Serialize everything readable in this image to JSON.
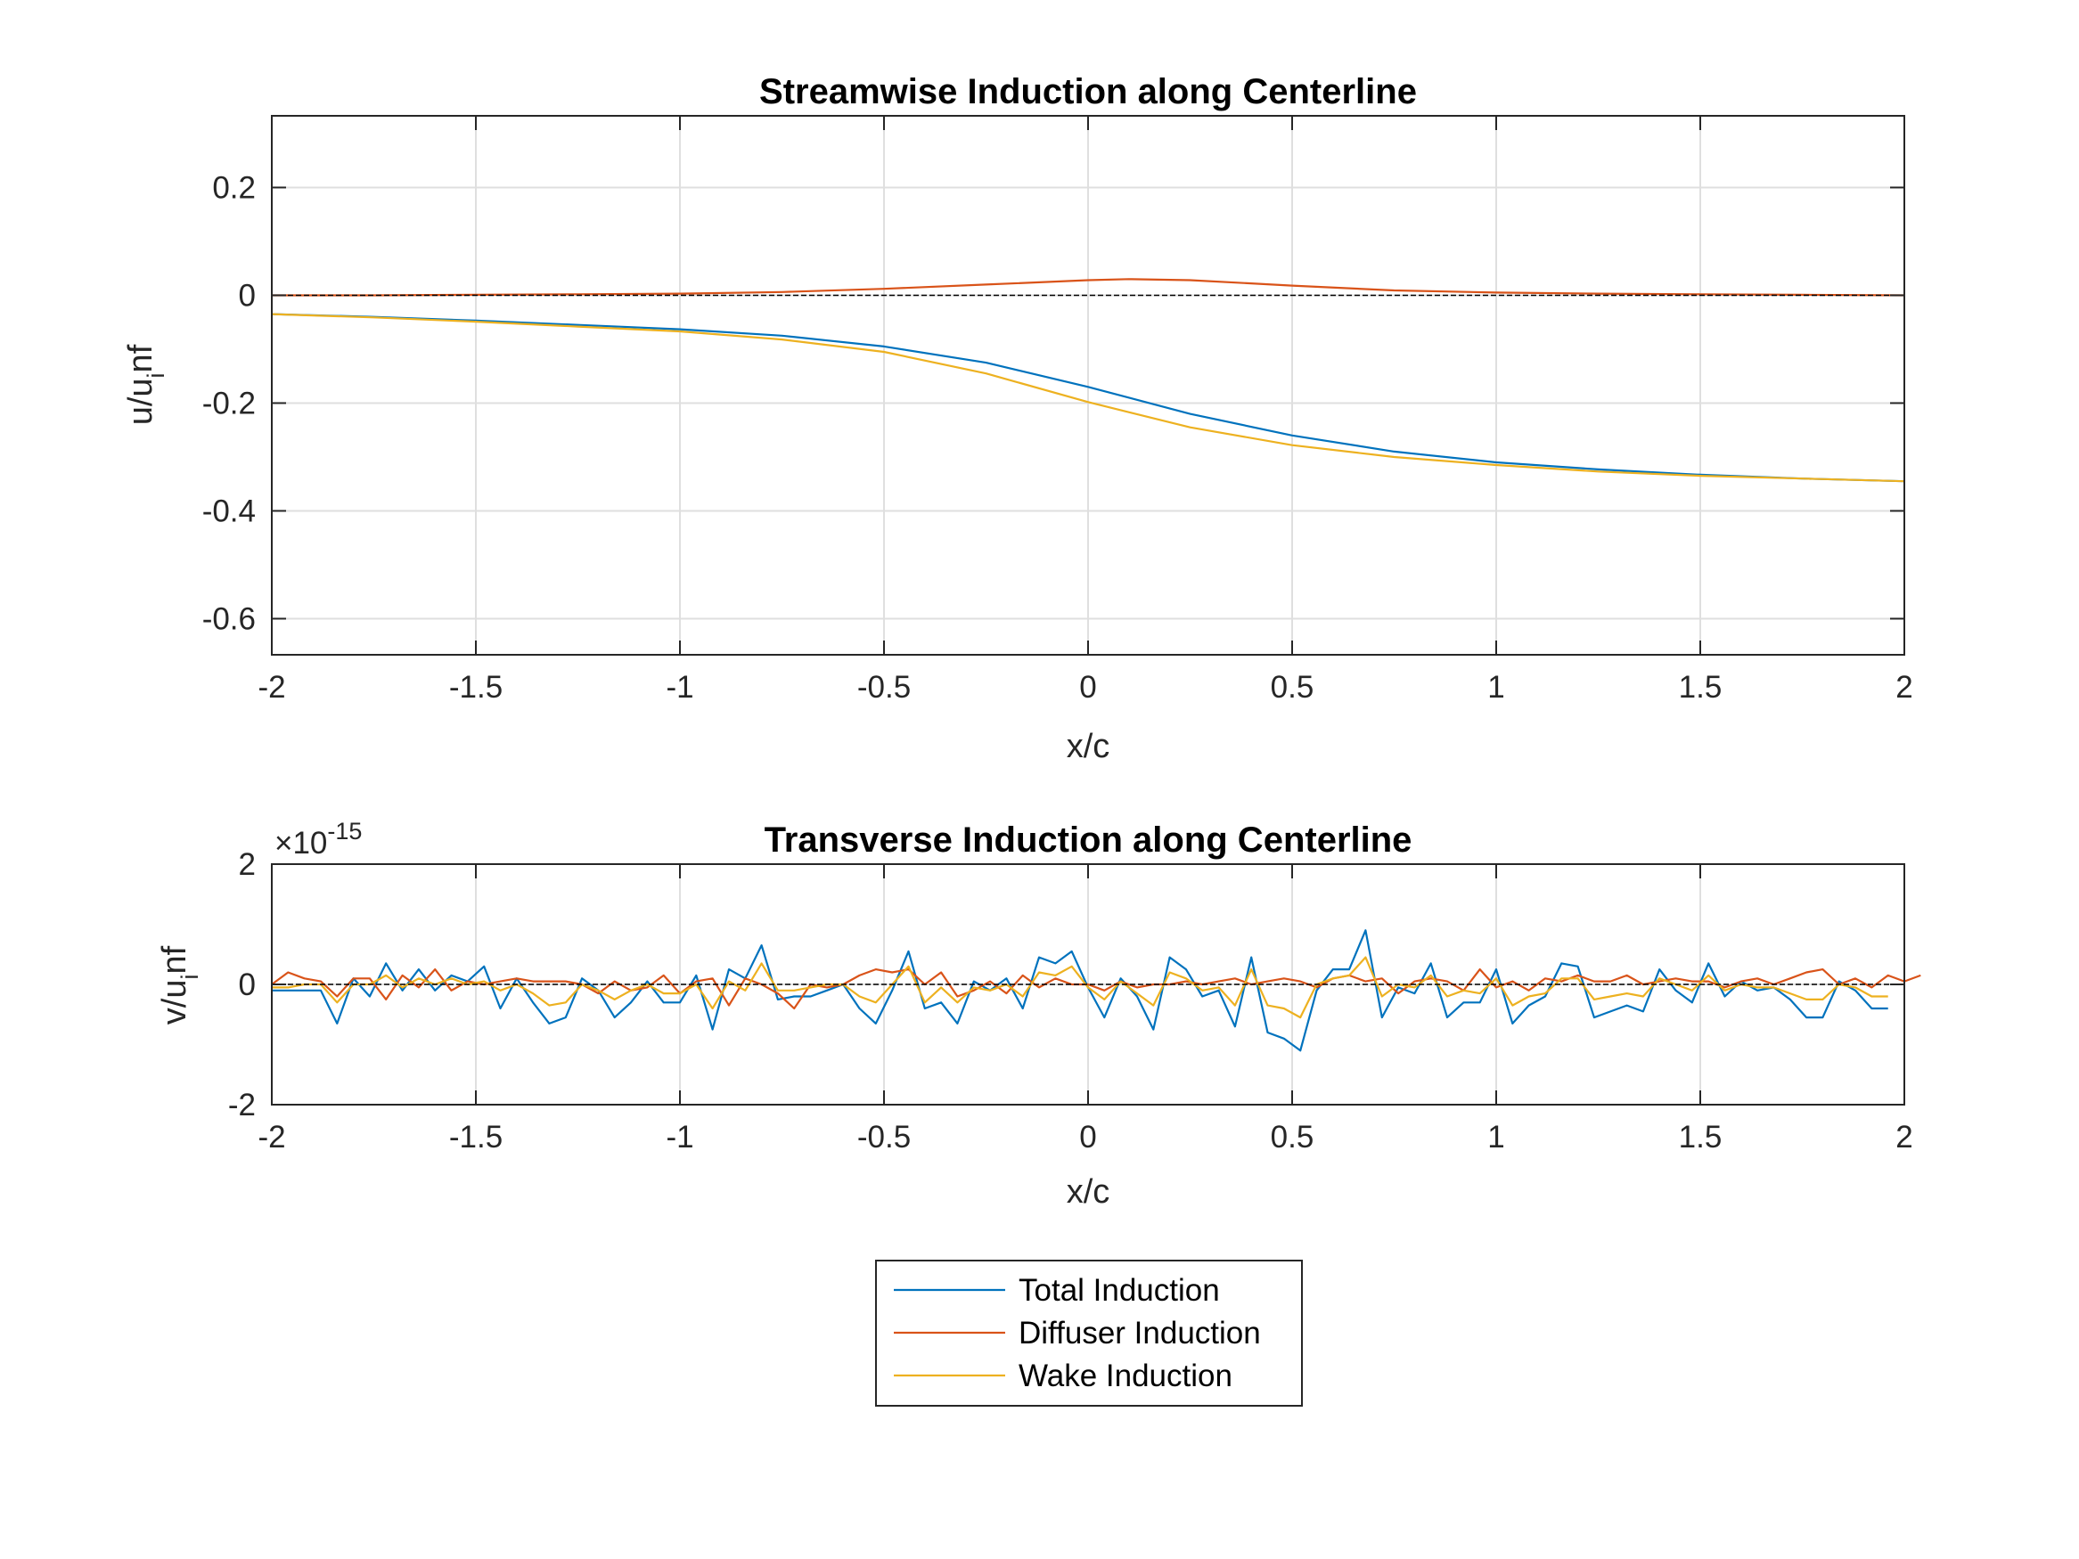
{
  "chart_data": [
    {
      "type": "line",
      "title": "Streamwise Induction along Centerline",
      "xlabel": "x/c",
      "ylabel": "u/u_inf",
      "ylabel_main": "u/u",
      "ylabel_sub": "i",
      "ylabel_tail": "nf",
      "xlim": [
        -2,
        2
      ],
      "ylim": [
        -0.667,
        0.333
      ],
      "xticks": [
        "-2",
        "-1.5",
        "-1",
        "-0.5",
        "0",
        "0.5",
        "1",
        "1.5",
        "2"
      ],
      "yticks": [
        "0.2",
        "0",
        "-0.2",
        "-0.4",
        "-0.6"
      ],
      "ytick_values": [
        0.2,
        0,
        -0.2,
        -0.4,
        -0.6
      ],
      "grid": true,
      "series": [
        {
          "name": "Total Induction",
          "color": "#0072BD",
          "x": [
            -2,
            -1.75,
            -1.5,
            -1.25,
            -1,
            -0.75,
            -0.5,
            -0.25,
            0,
            0.25,
            0.5,
            0.75,
            1,
            1.25,
            1.5,
            1.75,
            2
          ],
          "y": [
            -0.035,
            -0.04,
            -0.047,
            -0.055,
            -0.063,
            -0.075,
            -0.095,
            -0.125,
            -0.17,
            -0.22,
            -0.26,
            -0.29,
            -0.31,
            -0.323,
            -0.333,
            -0.34,
            -0.345
          ]
        },
        {
          "name": "Diffuser Induction",
          "color": "#D95319",
          "x": [
            -2,
            -1.75,
            -1.5,
            -1.25,
            -1,
            -0.75,
            -0.5,
            -0.25,
            0,
            0.1,
            0.25,
            0.5,
            0.75,
            1,
            1.25,
            1.5,
            1.75,
            2
          ],
          "y": [
            0.0,
            0.0,
            0.001,
            0.002,
            0.003,
            0.006,
            0.012,
            0.02,
            0.028,
            0.03,
            0.028,
            0.018,
            0.009,
            0.005,
            0.003,
            0.002,
            0.001,
            0.0
          ]
        },
        {
          "name": "Wake Induction",
          "color": "#EDB120",
          "x": [
            -2,
            -1.75,
            -1.5,
            -1.25,
            -1,
            -0.75,
            -0.5,
            -0.25,
            0,
            0.25,
            0.5,
            0.75,
            1,
            1.25,
            1.5,
            1.75,
            2
          ],
          "y": [
            -0.035,
            -0.041,
            -0.049,
            -0.058,
            -0.067,
            -0.082,
            -0.105,
            -0.145,
            -0.198,
            -0.245,
            -0.278,
            -0.3,
            -0.315,
            -0.327,
            -0.335,
            -0.34,
            -0.345
          ]
        },
        {
          "name": "",
          "color": "#000000",
          "dashed": true,
          "x": [
            -2,
            2
          ],
          "y": [
            0,
            0
          ]
        }
      ]
    },
    {
      "type": "line",
      "title": "Transverse Induction along Centerline",
      "xlabel": "x/c",
      "ylabel": "v/u_inf",
      "ylabel_main": "v/u",
      "ylabel_sub": "i",
      "ylabel_tail": "nf",
      "exponent_base": "×10",
      "exponent_power": "-15",
      "xlim": [
        -2,
        2
      ],
      "ylim": [
        -2,
        2
      ],
      "xticks": [
        "-2",
        "-1.5",
        "-1",
        "-0.5",
        "0",
        "0.5",
        "1",
        "1.5",
        "2"
      ],
      "yticks": [
        "2",
        "0",
        "-2"
      ],
      "ytick_values": [
        2,
        0,
        -2
      ],
      "grid": true,
      "x_start": -2,
      "x_step": 0.04,
      "series": [
        {
          "name": "Total Induction",
          "color": "#0072BD",
          "y": [
            -0.1,
            -0.1,
            -0.1,
            -0.1,
            -0.65,
            0.1,
            -0.2,
            0.35,
            -0.1,
            0.25,
            -0.1,
            0.15,
            0.05,
            0.3,
            -0.4,
            0.1,
            -0.3,
            -0.65,
            -0.55,
            0.1,
            -0.1,
            -0.55,
            -0.3,
            0.05,
            -0.3,
            -0.3,
            0.15,
            -0.75,
            0.25,
            0.1,
            0.65,
            -0.25,
            -0.2,
            -0.2,
            -0.1,
            0,
            -0.4,
            -0.65,
            -0.1,
            0.55,
            -0.4,
            -0.3,
            -0.65,
            0.05,
            -0.1,
            0.1,
            -0.4,
            0.45,
            0.35,
            0.55,
            -0.05,
            -0.55,
            0.1,
            -0.2,
            -0.75,
            0.45,
            0.25,
            -0.2,
            -0.1,
            -0.7,
            0.45,
            -0.8,
            -0.9,
            -1.1,
            -0.1,
            0.25,
            0.25,
            0.9,
            -0.55,
            -0.05,
            -0.15,
            0.35,
            -0.55,
            -0.3,
            -0.3,
            0.25,
            -0.65,
            -0.35,
            -0.2,
            0.35,
            0.3,
            -0.55,
            -0.45,
            -0.35,
            -0.45,
            0.25,
            -0.1,
            -0.3,
            0.35,
            -0.2,
            0.05,
            -0.1,
            -0.05,
            -0.25,
            -0.55,
            -0.55,
            0.05,
            -0.1,
            -0.4,
            -0.4
          ]
        },
        {
          "name": "Diffuser Induction",
          "color": "#D95319",
          "y": [
            0.0,
            0.2,
            0.1,
            0.05,
            -0.2,
            0.1,
            0.1,
            -0.25,
            0.15,
            -0.05,
            0.25,
            -0.1,
            0.05,
            0.0,
            0.05,
            0.1,
            0.05,
            0.05,
            0.05,
            0.0,
            -0.15,
            0.05,
            -0.1,
            -0.05,
            0.15,
            -0.15,
            0.05,
            0.1,
            -0.35,
            0.1,
            0.0,
            -0.15,
            -0.4,
            0.0,
            -0.05,
            0.0,
            0.15,
            0.25,
            0.2,
            0.25,
            0.0,
            0.2,
            -0.2,
            -0.1,
            0.05,
            -0.15,
            0.15,
            -0.05,
            0.1,
            0.0,
            0.0,
            -0.1,
            0.05,
            -0.05,
            0.0,
            0.0,
            0.05,
            0.0,
            0.05,
            0.1,
            0.0,
            0.05,
            0.1,
            0.05,
            -0.05,
            0.1,
            0.15,
            0.05,
            0.1,
            -0.15,
            0.05,
            0.1,
            0.05,
            -0.1,
            0.25,
            -0.05,
            0.05,
            -0.1,
            0.1,
            0.05,
            0.15,
            0.05,
            0.05,
            0.15,
            0.0,
            0.05,
            0.1,
            0.05,
            0.05,
            -0.05,
            0.05,
            0.1,
            0.0,
            0.1,
            0.2,
            0.25,
            0.0,
            0.1,
            -0.05,
            0.15,
            0.05,
            0.15
          ]
        },
        {
          "name": "Wake Induction",
          "color": "#EDB120",
          "y": [
            -0.05,
            -0.05,
            0.0,
            0.0,
            -0.3,
            0.0,
            0.0,
            0.15,
            -0.05,
            0.1,
            0.0,
            0.1,
            0.0,
            0.05,
            -0.1,
            0.0,
            -0.15,
            -0.35,
            -0.3,
            0.0,
            -0.1,
            -0.25,
            -0.1,
            0.0,
            -0.15,
            -0.15,
            0.0,
            -0.4,
            0.05,
            -0.1,
            0.35,
            -0.1,
            -0.1,
            -0.05,
            0.0,
            0.0,
            -0.2,
            -0.3,
            0.0,
            0.3,
            -0.3,
            -0.05,
            -0.3,
            -0.05,
            -0.1,
            0.0,
            -0.2,
            0.2,
            0.15,
            0.3,
            -0.05,
            -0.25,
            0.05,
            -0.15,
            -0.35,
            0.2,
            0.1,
            -0.1,
            -0.05,
            -0.35,
            0.25,
            -0.35,
            -0.4,
            -0.55,
            0.0,
            0.1,
            0.15,
            0.45,
            -0.2,
            0.0,
            -0.05,
            0.15,
            -0.2,
            -0.1,
            -0.15,
            0.1,
            -0.35,
            -0.2,
            -0.15,
            0.1,
            0.1,
            -0.25,
            -0.2,
            -0.15,
            -0.2,
            0.1,
            0.0,
            -0.1,
            0.15,
            -0.1,
            0.0,
            -0.05,
            -0.05,
            -0.15,
            -0.25,
            -0.25,
            0.0,
            -0.05,
            -0.2,
            -0.2
          ]
        },
        {
          "name": "",
          "color": "#000000",
          "dashed": true,
          "x": [
            -2,
            2
          ],
          "y": [
            0,
            0
          ]
        }
      ]
    }
  ],
  "legend": {
    "placement": "bottom-center",
    "entries": [
      "Total Induction",
      "Diffuser Induction",
      "Wake Induction"
    ]
  }
}
